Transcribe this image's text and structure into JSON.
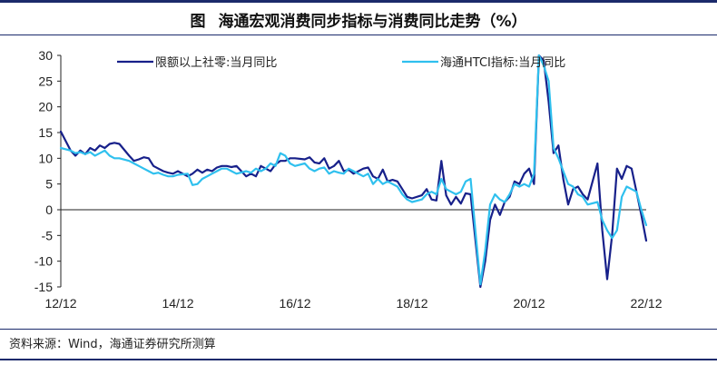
{
  "figure": {
    "label": "图",
    "title": "海通宏观消费同步指标与消费同比走势（%）",
    "source": "资料来源：Wind，海通证券研究所测算"
  },
  "chart_data": {
    "type": "line",
    "ylim": [
      -15,
      30
    ],
    "yticks": [
      30,
      25,
      20,
      15,
      10,
      5,
      0,
      -5,
      -10,
      -15
    ],
    "xticks": [
      "12/12",
      "14/12",
      "16/12",
      "18/12",
      "20/12",
      "22/12"
    ],
    "xlim": [
      "2012-12",
      "2022-12"
    ],
    "grid": false,
    "legend": "top",
    "series": [
      {
        "name": "限额以上社零:当月同比",
        "color": "#17208a",
        "points": [
          [
            "2012-12",
            15.2
          ],
          [
            "2013-02",
            11.5
          ],
          [
            "2013-03",
            10.5
          ],
          [
            "2013-04",
            11.5
          ],
          [
            "2013-05",
            10.8
          ],
          [
            "2013-06",
            12.0
          ],
          [
            "2013-07",
            11.5
          ],
          [
            "2013-08",
            12.5
          ],
          [
            "2013-09",
            12.0
          ],
          [
            "2013-10",
            12.8
          ],
          [
            "2013-11",
            13.0
          ],
          [
            "2013-12",
            12.8
          ],
          [
            "2014-02",
            10.5
          ],
          [
            "2014-03",
            9.5
          ],
          [
            "2014-04",
            9.8
          ],
          [
            "2014-05",
            10.2
          ],
          [
            "2014-06",
            10.0
          ],
          [
            "2014-07",
            8.5
          ],
          [
            "2014-08",
            8.0
          ],
          [
            "2014-09",
            7.5
          ],
          [
            "2014-10",
            7.2
          ],
          [
            "2014-11",
            7.0
          ],
          [
            "2014-12",
            7.5
          ],
          [
            "2015-02",
            6.5
          ],
          [
            "2015-03",
            7.0
          ],
          [
            "2015-04",
            7.8
          ],
          [
            "2015-05",
            7.2
          ],
          [
            "2015-06",
            7.8
          ],
          [
            "2015-07",
            7.5
          ],
          [
            "2015-08",
            8.2
          ],
          [
            "2015-09",
            8.5
          ],
          [
            "2015-10",
            8.5
          ],
          [
            "2015-11",
            8.3
          ],
          [
            "2015-12",
            8.5
          ],
          [
            "2016-02",
            6.5
          ],
          [
            "2016-03",
            7.0
          ],
          [
            "2016-04",
            6.5
          ],
          [
            "2016-05",
            8.5
          ],
          [
            "2016-06",
            8.0
          ],
          [
            "2016-07",
            7.5
          ],
          [
            "2016-08",
            8.8
          ],
          [
            "2016-09",
            9.5
          ],
          [
            "2016-10",
            9.5
          ],
          [
            "2016-11",
            10.0
          ],
          [
            "2016-12",
            10.0
          ],
          [
            "2017-02",
            9.8
          ],
          [
            "2017-03",
            10.2
          ],
          [
            "2017-04",
            9.2
          ],
          [
            "2017-05",
            9.0
          ],
          [
            "2017-06",
            10.0
          ],
          [
            "2017-07",
            8.0
          ],
          [
            "2017-08",
            8.5
          ],
          [
            "2017-09",
            9.5
          ],
          [
            "2017-10",
            7.5
          ],
          [
            "2017-11",
            7.8
          ],
          [
            "2017-12",
            7.0
          ],
          [
            "2018-02",
            8.0
          ],
          [
            "2018-03",
            8.2
          ],
          [
            "2018-04",
            6.5
          ],
          [
            "2018-05",
            6.0
          ],
          [
            "2018-06",
            7.8
          ],
          [
            "2018-07",
            5.5
          ],
          [
            "2018-08",
            5.8
          ],
          [
            "2018-09",
            5.5
          ],
          [
            "2018-10",
            4.0
          ],
          [
            "2018-11",
            2.5
          ],
          [
            "2018-12",
            2.2
          ],
          [
            "2019-02",
            2.8
          ],
          [
            "2019-03",
            4.0
          ],
          [
            "2019-04",
            2.0
          ],
          [
            "2019-05",
            1.8
          ],
          [
            "2019-06",
            9.5
          ],
          [
            "2019-07",
            2.8
          ],
          [
            "2019-08",
            1.0
          ],
          [
            "2019-09",
            2.5
          ],
          [
            "2019-10",
            1.2
          ],
          [
            "2019-11",
            3.2
          ],
          [
            "2019-12",
            3.0
          ],
          [
            "2020-02",
            -15.0
          ],
          [
            "2020-03",
            -10.0
          ],
          [
            "2020-04",
            -2.0
          ],
          [
            "2020-05",
            1.0
          ],
          [
            "2020-06",
            -1.0
          ],
          [
            "2020-07",
            1.5
          ],
          [
            "2020-08",
            2.5
          ],
          [
            "2020-09",
            5.5
          ],
          [
            "2020-10",
            5.0
          ],
          [
            "2020-11",
            7.0
          ],
          [
            "2020-12",
            8.0
          ],
          [
            "2021-01",
            5.0
          ],
          [
            "2021-02",
            30.0
          ],
          [
            "2021-03",
            29.0
          ],
          [
            "2021-04",
            21.0
          ],
          [
            "2021-05",
            11.0
          ],
          [
            "2021-06",
            12.5
          ],
          [
            "2021-07",
            6.0
          ],
          [
            "2021-08",
            1.0
          ],
          [
            "2021-09",
            4.0
          ],
          [
            "2021-10",
            4.5
          ],
          [
            "2021-11",
            3.0
          ],
          [
            "2021-12",
            2.0
          ],
          [
            "2022-02",
            9.0
          ],
          [
            "2022-03",
            -4.0
          ],
          [
            "2022-04",
            -13.5
          ],
          [
            "2022-05",
            -5.0
          ],
          [
            "2022-06",
            8.0
          ],
          [
            "2022-07",
            6.0
          ],
          [
            "2022-08",
            8.5
          ],
          [
            "2022-09",
            8.0
          ],
          [
            "2022-10",
            3.5
          ],
          [
            "2022-11",
            -1.0
          ],
          [
            "2022-12",
            -6.0
          ]
        ]
      },
      {
        "name": "海通HTCI指标:当月同比",
        "color": "#2fc0ee",
        "points": [
          [
            "2012-12",
            12.0
          ],
          [
            "2013-02",
            11.5
          ],
          [
            "2013-03",
            11.0
          ],
          [
            "2013-04",
            11.2
          ],
          [
            "2013-05",
            10.8
          ],
          [
            "2013-06",
            11.2
          ],
          [
            "2013-07",
            10.5
          ],
          [
            "2013-08",
            11.0
          ],
          [
            "2013-09",
            11.5
          ],
          [
            "2013-10",
            10.5
          ],
          [
            "2013-11",
            10.0
          ],
          [
            "2013-12",
            10.0
          ],
          [
            "2014-02",
            9.5
          ],
          [
            "2014-03",
            9.0
          ],
          [
            "2014-04",
            8.5
          ],
          [
            "2014-05",
            8.0
          ],
          [
            "2014-06",
            7.5
          ],
          [
            "2014-07",
            7.0
          ],
          [
            "2014-08",
            7.2
          ],
          [
            "2014-09",
            6.8
          ],
          [
            "2014-10",
            6.5
          ],
          [
            "2014-11",
            6.5
          ],
          [
            "2014-12",
            6.8
          ],
          [
            "2015-02",
            7.0
          ],
          [
            "2015-03",
            4.8
          ],
          [
            "2015-04",
            5.0
          ],
          [
            "2015-05",
            6.0
          ],
          [
            "2015-06",
            6.5
          ],
          [
            "2015-07",
            7.0
          ],
          [
            "2015-08",
            7.5
          ],
          [
            "2015-09",
            8.0
          ],
          [
            "2015-10",
            8.0
          ],
          [
            "2015-11",
            7.5
          ],
          [
            "2015-12",
            7.0
          ],
          [
            "2016-02",
            7.5
          ],
          [
            "2016-03",
            7.2
          ],
          [
            "2016-04",
            8.0
          ],
          [
            "2016-05",
            7.5
          ],
          [
            "2016-06",
            8.0
          ],
          [
            "2016-07",
            9.0
          ],
          [
            "2016-08",
            8.5
          ],
          [
            "2016-09",
            11.0
          ],
          [
            "2016-10",
            10.5
          ],
          [
            "2016-11",
            9.0
          ],
          [
            "2016-12",
            8.5
          ],
          [
            "2017-02",
            9.0
          ],
          [
            "2017-03",
            8.0
          ],
          [
            "2017-04",
            7.5
          ],
          [
            "2017-05",
            8.0
          ],
          [
            "2017-06",
            8.2
          ],
          [
            "2017-07",
            7.0
          ],
          [
            "2017-08",
            7.5
          ],
          [
            "2017-09",
            7.2
          ],
          [
            "2017-10",
            7.0
          ],
          [
            "2017-11",
            8.0
          ],
          [
            "2017-12",
            7.5
          ],
          [
            "2018-02",
            6.5
          ],
          [
            "2018-03",
            7.0
          ],
          [
            "2018-04",
            5.0
          ],
          [
            "2018-05",
            6.0
          ],
          [
            "2018-06",
            5.0
          ],
          [
            "2018-07",
            5.5
          ],
          [
            "2018-08",
            5.0
          ],
          [
            "2018-09",
            4.5
          ],
          [
            "2018-10",
            3.0
          ],
          [
            "2018-11",
            2.0
          ],
          [
            "2018-12",
            1.5
          ],
          [
            "2019-02",
            2.0
          ],
          [
            "2019-03",
            3.0
          ],
          [
            "2019-04",
            3.5
          ],
          [
            "2019-05",
            3.0
          ],
          [
            "2019-06",
            6.0
          ],
          [
            "2019-07",
            4.0
          ],
          [
            "2019-08",
            3.5
          ],
          [
            "2019-09",
            3.0
          ],
          [
            "2019-10",
            3.5
          ],
          [
            "2019-11",
            5.5
          ],
          [
            "2019-12",
            6.0
          ],
          [
            "2020-02",
            -14.5
          ],
          [
            "2020-03",
            -8.0
          ],
          [
            "2020-04",
            1.0
          ],
          [
            "2020-05",
            3.0
          ],
          [
            "2020-06",
            2.0
          ],
          [
            "2020-07",
            1.5
          ],
          [
            "2020-08",
            3.0
          ],
          [
            "2020-09",
            5.0
          ],
          [
            "2020-10",
            4.5
          ],
          [
            "2020-11",
            5.0
          ],
          [
            "2020-12",
            4.5
          ],
          [
            "2021-01",
            7.0
          ],
          [
            "2021-02",
            30.0
          ],
          [
            "2021-03",
            28.0
          ],
          [
            "2021-04",
            25.0
          ],
          [
            "2021-05",
            12.0
          ],
          [
            "2021-06",
            10.0
          ],
          [
            "2021-07",
            7.5
          ],
          [
            "2021-08",
            5.0
          ],
          [
            "2021-09",
            4.5
          ],
          [
            "2021-10",
            3.0
          ],
          [
            "2021-11",
            2.5
          ],
          [
            "2021-12",
            1.0
          ],
          [
            "2022-02",
            1.5
          ],
          [
            "2022-03",
            -2.0
          ],
          [
            "2022-04",
            -4.0
          ],
          [
            "2022-05",
            -5.5
          ],
          [
            "2022-06",
            -4.0
          ],
          [
            "2022-07",
            2.5
          ],
          [
            "2022-08",
            4.5
          ],
          [
            "2022-09",
            4.0
          ],
          [
            "2022-10",
            3.5
          ],
          [
            "2022-11",
            0.0
          ],
          [
            "2022-12",
            -3.0
          ]
        ]
      }
    ]
  }
}
